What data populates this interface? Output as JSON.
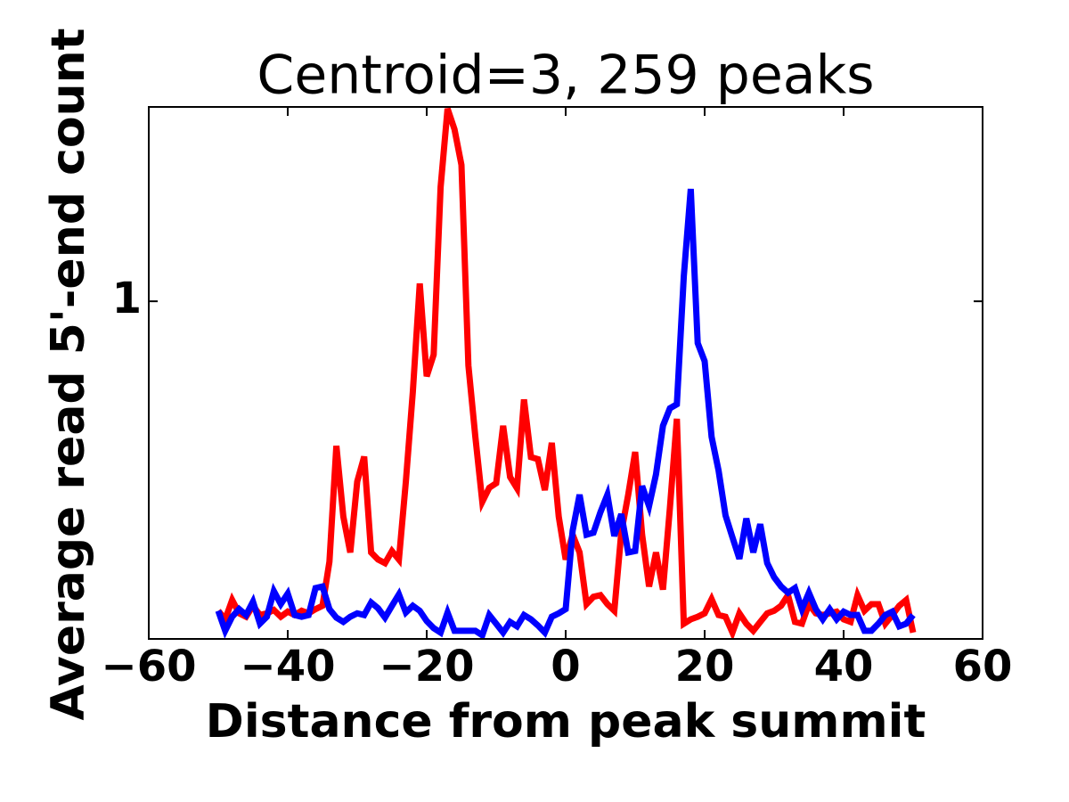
{
  "chart_data": {
    "type": "line",
    "title": "Centroid=3, 259 peaks",
    "xlabel": "Distance from peak summit",
    "ylabel": "Average read 5'-end count",
    "yscale": "log",
    "xlim": [
      -60,
      60
    ],
    "ylim": [
      0.35,
      1.83
    ],
    "xticks": [
      {
        "value": -60,
        "label": "−60"
      },
      {
        "value": -40,
        "label": "−40"
      },
      {
        "value": -20,
        "label": "−20"
      },
      0,
      20,
      40,
      60
    ],
    "yticks": [
      1
    ],
    "x": [
      -50,
      -49,
      -48,
      -47,
      -46,
      -45,
      -44,
      -43,
      -42,
      -41,
      -40,
      -39,
      -38,
      -37,
      -36,
      -35,
      -34,
      -33,
      -32,
      -31,
      -30,
      -29,
      -28,
      -27,
      -26,
      -25,
      -24,
      -23,
      -22,
      -21,
      -20,
      -19,
      -18,
      -17,
      -16,
      -15,
      -14,
      -13,
      -12,
      -11,
      -10,
      -9,
      -8,
      -7,
      -6,
      -5,
      -4,
      -3,
      -2,
      -1,
      0,
      1,
      2,
      3,
      4,
      5,
      6,
      7,
      8,
      9,
      10,
      11,
      12,
      13,
      14,
      15,
      16,
      17,
      18,
      19,
      20,
      21,
      22,
      23,
      24,
      25,
      26,
      27,
      28,
      29,
      30,
      31,
      32,
      33,
      34,
      35,
      36,
      37,
      38,
      39,
      40,
      41,
      42,
      43,
      44,
      45,
      46,
      47,
      48,
      49,
      50
    ],
    "series": [
      {
        "color": "#ff0000",
        "values": [
          0.382,
          0.372,
          0.395,
          0.379,
          0.375,
          0.388,
          0.377,
          0.379,
          0.383,
          0.375,
          0.381,
          0.377,
          0.382,
          0.379,
          0.384,
          0.388,
          0.445,
          0.638,
          0.512,
          0.458,
          0.571,
          0.617,
          0.458,
          0.448,
          0.443,
          0.46,
          0.448,
          0.571,
          0.754,
          1.057,
          0.792,
          0.847,
          1.426,
          1.82,
          1.707,
          1.528,
          0.819,
          0.656,
          0.536,
          0.56,
          0.568,
          0.679,
          0.579,
          0.559,
          0.737,
          0.616,
          0.612,
          0.556,
          0.644,
          0.512,
          0.448,
          0.484,
          0.458,
          0.39,
          0.399,
          0.401,
          0.39,
          0.382,
          0.487,
          0.548,
          0.626,
          0.484,
          0.412,
          0.458,
          0.408,
          0.526,
          0.694,
          0.367,
          0.372,
          0.375,
          0.379,
          0.396,
          0.377,
          0.375,
          0.357,
          0.379,
          0.367,
          0.359,
          0.369,
          0.379,
          0.382,
          0.388,
          0.401,
          0.369,
          0.367,
          0.39,
          0.379,
          0.377,
          0.379,
          0.381,
          0.372,
          0.369,
          0.401,
          0.382,
          0.39,
          0.39,
          0.367,
          0.377,
          0.388,
          0.395,
          0.357
        ]
      },
      {
        "color": "#0000ff",
        "values": [
          0.382,
          0.359,
          0.375,
          0.384,
          0.377,
          0.393,
          0.367,
          0.375,
          0.406,
          0.39,
          0.403,
          0.377,
          0.375,
          0.377,
          0.41,
          0.412,
          0.384,
          0.374,
          0.369,
          0.375,
          0.379,
          0.377,
          0.392,
          0.385,
          0.374,
          0.388,
          0.402,
          0.38,
          0.388,
          0.382,
          0.37,
          0.362,
          0.357,
          0.38,
          0.359,
          0.359,
          0.359,
          0.359,
          0.354,
          0.377,
          0.367,
          0.357,
          0.369,
          0.364,
          0.377,
          0.372,
          0.365,
          0.357,
          0.375,
          0.379,
          0.384,
          0.49,
          0.548,
          0.484,
          0.487,
          0.519,
          0.548,
          0.482,
          0.516,
          0.458,
          0.46,
          0.563,
          0.529,
          0.584,
          0.679,
          0.717,
          0.726,
          1.081,
          1.418,
          0.878,
          0.83,
          0.656,
          0.591,
          0.514,
          0.48,
          0.449,
          0.509,
          0.458,
          0.5,
          0.443,
          0.424,
          0.412,
          0.404,
          0.41,
          0.384,
          0.404,
          0.384,
          0.372,
          0.384,
          0.372,
          0.381,
          0.377,
          0.377,
          0.359,
          0.359,
          0.367,
          0.377,
          0.381,
          0.364,
          0.367,
          0.377
        ]
      }
    ]
  }
}
